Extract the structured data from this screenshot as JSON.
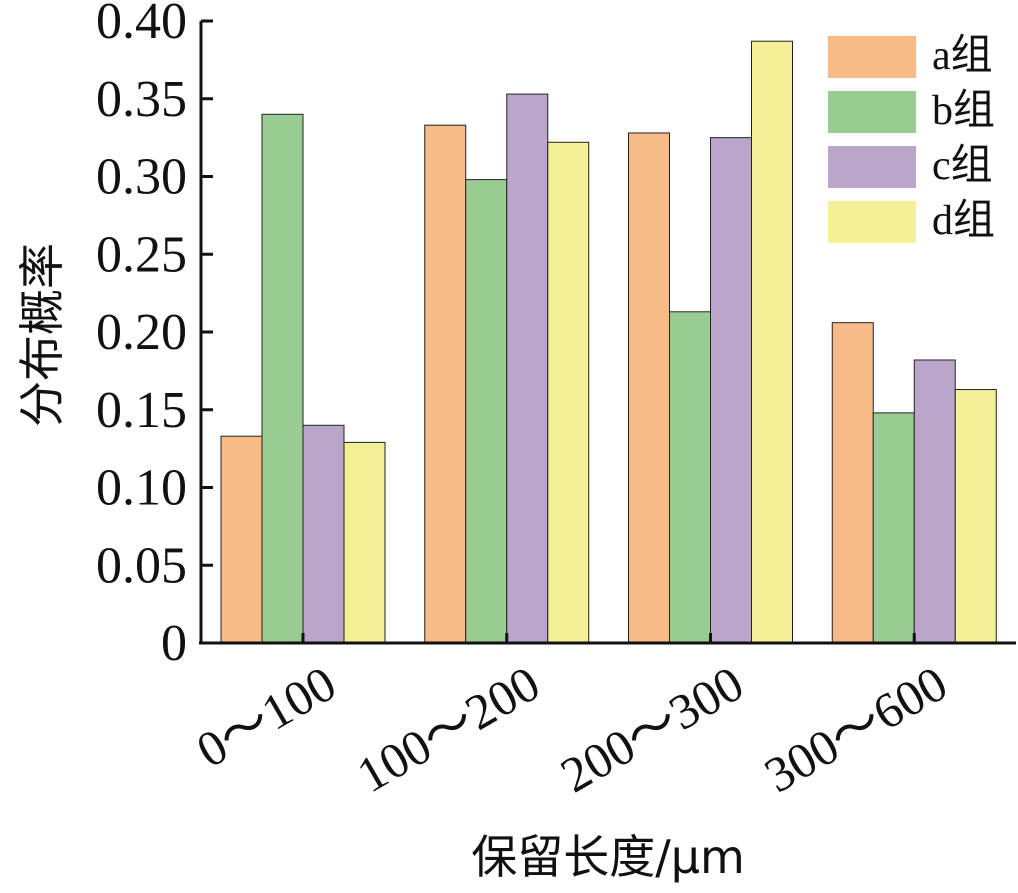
{
  "chart_data": {
    "type": "bar",
    "categories": [
      "0～100",
      "100～200",
      "200～300",
      "300～600"
    ],
    "series": [
      {
        "name": "a组",
        "color": "#F8BB88",
        "values": [
          0.133,
          0.333,
          0.328,
          0.206
        ]
      },
      {
        "name": "b组",
        "color": "#99CC93",
        "values": [
          0.34,
          0.298,
          0.213,
          0.148
        ]
      },
      {
        "name": "c组",
        "color": "#BBA5CA",
        "values": [
          0.14,
          0.353,
          0.325,
          0.182
        ]
      },
      {
        "name": "d组",
        "color": "#F4F096",
        "values": [
          0.129,
          0.322,
          0.387,
          0.163
        ]
      }
    ],
    "xlabel": "保留长度/μm",
    "ylabel": "分布概率",
    "ylim": [
      0,
      0.4
    ],
    "yticks": [
      "0",
      "0.05",
      "0.10",
      "0.15",
      "0.20",
      "0.25",
      "0.30",
      "0.35",
      "0.40"
    ],
    "legend_position": "top-right",
    "grid": false
  }
}
